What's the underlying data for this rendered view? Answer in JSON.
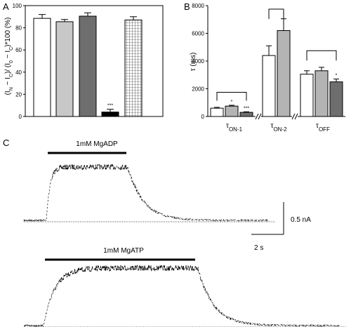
{
  "chart_data": [
    {
      "panel": "A",
      "type": "bar",
      "ylabel_parts": [
        "(I",
        "N",
        " − I",
        "C",
        ")/ (I",
        "0",
        " − I",
        "C",
        ")*100 (%)"
      ],
      "ylim": [
        0,
        100
      ],
      "yticks": [
        0,
        20,
        40,
        60,
        80,
        100
      ],
      "bars": [
        {
          "value": 88.5,
          "error": 3.5,
          "fill": "#ffffff",
          "pattern": "none",
          "annotation": ""
        },
        {
          "value": 85.5,
          "error": 2.0,
          "fill": "#c8c8c8",
          "pattern": "none",
          "annotation": ""
        },
        {
          "value": 90.5,
          "error": 3.0,
          "fill": "#6e6e6e",
          "pattern": "none",
          "annotation": ""
        },
        {
          "value": 4.0,
          "error": 2.5,
          "fill": "#000000",
          "pattern": "none",
          "annotation": "***"
        },
        {
          "value": 87.0,
          "error": 3.0,
          "fill": "#ffffff",
          "pattern": "grid",
          "annotation": ""
        }
      ]
    },
    {
      "panel": "B",
      "type": "bar",
      "ylabel": "τ (ms)",
      "ylim": [
        0,
        8000
      ],
      "yticks": [
        0,
        2000,
        4000,
        6000,
        8000
      ],
      "groups": [
        {
          "label": "τ",
          "sub": "ON-1",
          "bars": [
            {
              "value": 600,
              "error": 60,
              "fill": "#ffffff",
              "annotation": ""
            },
            {
              "value": 750,
              "error": 60,
              "fill": "#b4b4b4",
              "annotation": "*"
            },
            {
              "value": 300,
              "error": 40,
              "fill": "#6e6e6e",
              "annotation": "***"
            }
          ]
        },
        {
          "label": "τ",
          "sub": "ON-2",
          "bars": [
            {
              "value": 4400,
              "error": 700,
              "fill": "#ffffff",
              "annotation": ""
            },
            {
              "value": 6200,
              "error": 850,
              "fill": "#b4b4b4",
              "annotation": ""
            }
          ]
        },
        {
          "label": "τ",
          "sub": "OFF",
          "bars": [
            {
              "value": 3050,
              "error": 250,
              "fill": "#ffffff",
              "annotation": ""
            },
            {
              "value": 3300,
              "error": 250,
              "fill": "#b4b4b4",
              "annotation": ""
            },
            {
              "value": 2500,
              "error": 200,
              "fill": "#6e6e6e",
              "annotation": "*"
            }
          ]
        }
      ]
    },
    {
      "panel": "C",
      "type": "line",
      "traces": [
        {
          "label": "1mM MgADP"
        },
        {
          "label": "1mM MgATP"
        }
      ],
      "scale_bar": {
        "current": "0.5 nA",
        "time": "2 s"
      }
    }
  ]
}
